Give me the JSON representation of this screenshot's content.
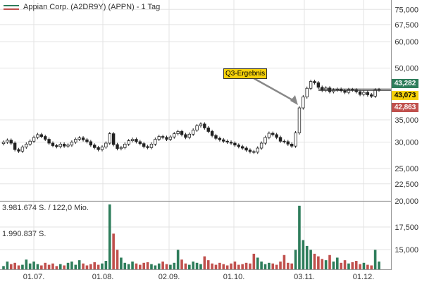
{
  "legend": {
    "title": "Appian Corp. (A2DR9Y) (APPN) - 1 Tag"
  },
  "annotation": {
    "label": "Q3-Ergebnis"
  },
  "price_tags": [
    {
      "id": "high",
      "value": "43,282",
      "bg": "#2e7d5b",
      "fg": "#ffffff"
    },
    {
      "id": "last",
      "value": "43,073",
      "bg": "#f5d10a",
      "fg": "#000000"
    },
    {
      "id": "low",
      "value": "42,863",
      "bg": "#c0504d",
      "fg": "#ffffff"
    }
  ],
  "volume_labels": {
    "max": "3.981.674 S. / 122,0 Mio.",
    "mid": "1.990.837 S."
  },
  "colors": {
    "up": "#2e7d5b",
    "down": "#c0504d",
    "candle": "#222222",
    "grid": "#e3e3e3"
  },
  "chart_data": [
    {
      "type": "candlestick",
      "scale": "log",
      "ylim": [
        20000,
        80000
      ],
      "y_ticks": [
        "75,000",
        "67,500",
        "60,000",
        "50,000",
        "43,282",
        "43,073",
        "42,863",
        "35,000",
        "30,000",
        "25,000",
        "22,500",
        "20,000"
      ],
      "x_ticks": [
        "01.07.",
        "01.08.",
        "02.09.",
        "01.10.",
        "03.11.",
        "01.12."
      ],
      "horizontal_lines": [
        43.282,
        42.863
      ],
      "close": [
        30.0,
        30.4,
        29.8,
        28.5,
        28.2,
        29.0,
        29.6,
        30.2,
        31.0,
        31.6,
        31.2,
        30.6,
        29.8,
        29.3,
        29.1,
        29.6,
        29.2,
        29.4,
        30.0,
        30.6,
        30.9,
        30.5,
        30.1,
        29.4,
        28.9,
        28.5,
        29.0,
        29.8,
        31.8,
        29.5,
        28.7,
        28.9,
        29.6,
        30.3,
        30.6,
        30.1,
        29.7,
        29.1,
        28.9,
        29.6,
        30.6,
        31.2,
        31.0,
        30.6,
        31.1,
        31.8,
        32.3,
        31.6,
        31.0,
        31.7,
        32.6,
        33.6,
        34.0,
        33.1,
        32.3,
        31.4,
        30.8,
        30.5,
        30.2,
        30.0,
        29.8,
        29.4,
        29.1,
        28.8,
        28.4,
        28.1,
        28.0,
        28.8,
        29.8,
        31.0,
        31.9,
        31.6,
        31.0,
        30.2,
        30.1,
        29.6,
        29.2,
        32.0,
        38.0,
        41.0,
        43.5,
        45.6,
        45.2,
        43.8,
        42.9,
        43.6,
        42.5,
        43.0,
        43.2,
        42.8,
        42.3,
        43.1,
        43.0,
        42.5,
        41.7,
        42.3,
        41.6,
        41.2,
        43.0,
        43.1
      ],
      "volume": [
        0.05,
        0.12,
        0.08,
        0.1,
        0.06,
        0.07,
        0.15,
        0.09,
        0.12,
        0.08,
        0.06,
        0.1,
        0.07,
        0.09,
        0.05,
        0.08,
        0.06,
        0.1,
        0.12,
        0.07,
        0.14,
        0.09,
        0.06,
        0.08,
        0.11,
        0.07,
        0.09,
        0.13,
        1.0,
        0.55,
        0.3,
        0.18,
        0.1,
        0.08,
        0.12,
        0.09,
        0.07,
        0.1,
        0.11,
        0.08,
        0.06,
        0.09,
        0.12,
        0.08,
        0.07,
        0.1,
        0.3,
        0.15,
        0.09,
        0.07,
        0.12,
        0.1,
        0.08,
        0.2,
        0.14,
        0.09,
        0.07,
        0.1,
        0.08,
        0.06,
        0.09,
        0.12,
        0.07,
        0.08,
        0.1,
        0.09,
        0.24,
        0.18,
        0.12,
        0.08,
        0.1,
        0.09,
        0.07,
        0.12,
        0.22,
        0.1,
        0.09,
        0.3,
        0.98,
        0.45,
        0.36,
        0.3,
        0.24,
        0.2,
        0.16,
        0.14,
        0.22,
        0.12,
        0.18,
        0.1,
        0.14,
        0.09,
        0.11,
        0.13,
        0.08,
        0.1,
        0.07,
        0.06,
        0.3,
        0.12
      ]
    }
  ]
}
